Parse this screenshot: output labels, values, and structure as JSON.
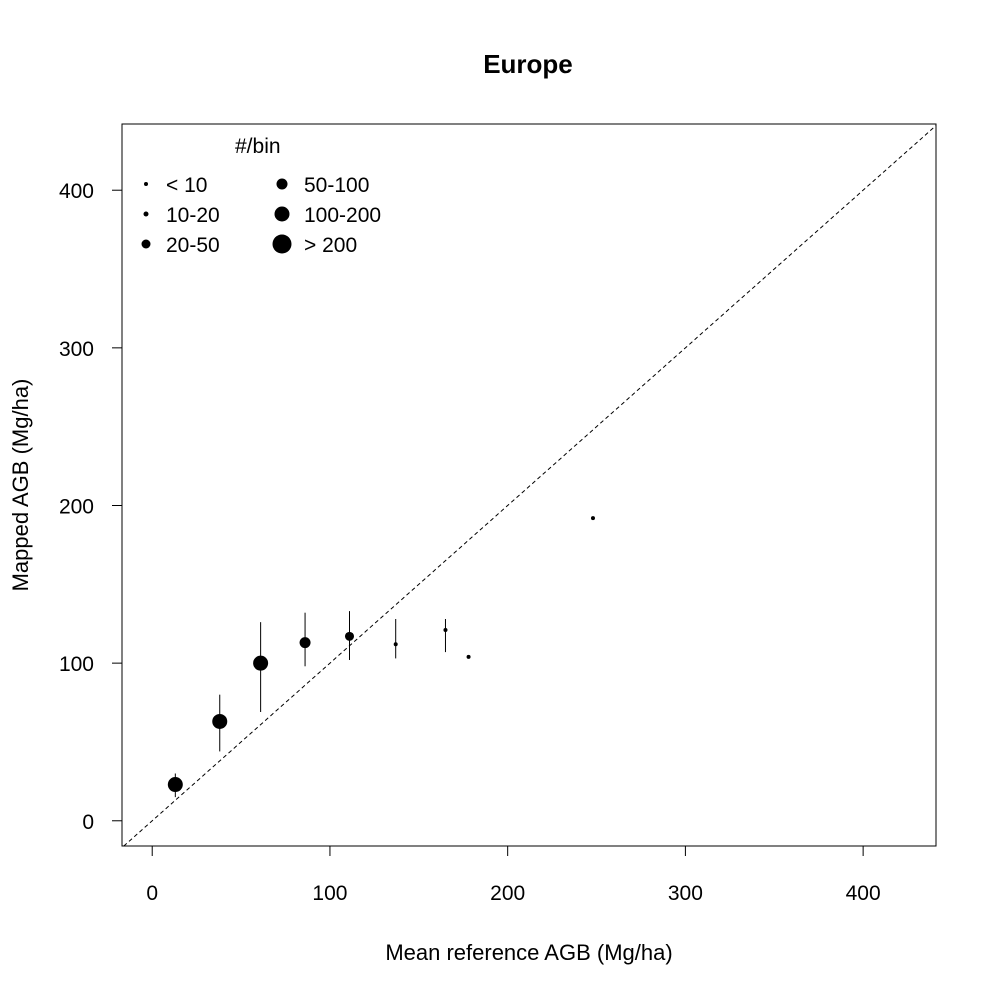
{
  "chart_data": {
    "type": "scatter",
    "title": "Europe",
    "xlabel": "Mean reference AGB (Mg/ha)",
    "ylabel": "Mapped AGB (Mg/ha)",
    "xlim": [
      -17,
      441
    ],
    "ylim": [
      -16,
      442
    ],
    "xticks": [
      0,
      100,
      200,
      300,
      400
    ],
    "yticks": [
      0,
      100,
      200,
      300,
      400
    ],
    "grid": false,
    "reference_line": {
      "type": "1:1",
      "style": "dashed"
    },
    "legend": {
      "title": "#/bin",
      "placement": "top-left",
      "items": [
        {
          "label": "< 10",
          "size_class": 1
        },
        {
          "label": "10-20",
          "size_class": 2
        },
        {
          "label": "20-50",
          "size_class": 3
        },
        {
          "label": "50-100",
          "size_class": 4
        },
        {
          "label": "100-200",
          "size_class": 5
        },
        {
          "label": "> 200",
          "size_class": 6
        }
      ]
    },
    "points": [
      {
        "x": 13,
        "y": 23,
        "ylow": 15,
        "yhigh": 30,
        "size_class": 5
      },
      {
        "x": 38,
        "y": 63,
        "ylow": 44,
        "yhigh": 80,
        "size_class": 5
      },
      {
        "x": 61,
        "y": 100,
        "ylow": 69,
        "yhigh": 126,
        "size_class": 5
      },
      {
        "x": 86,
        "y": 113,
        "ylow": 98,
        "yhigh": 132,
        "size_class": 4
      },
      {
        "x": 111,
        "y": 117,
        "ylow": 102,
        "yhigh": 133,
        "size_class": 3
      },
      {
        "x": 137,
        "y": 112,
        "ylow": 103,
        "yhigh": 128,
        "size_class": 1
      },
      {
        "x": 165,
        "y": 121,
        "ylow": 107,
        "yhigh": 128,
        "size_class": 1
      },
      {
        "x": 178,
        "y": 104,
        "ylow": null,
        "yhigh": null,
        "size_class": 1
      },
      {
        "x": 248,
        "y": 192,
        "ylow": null,
        "yhigh": null,
        "size_class": 1
      }
    ]
  }
}
